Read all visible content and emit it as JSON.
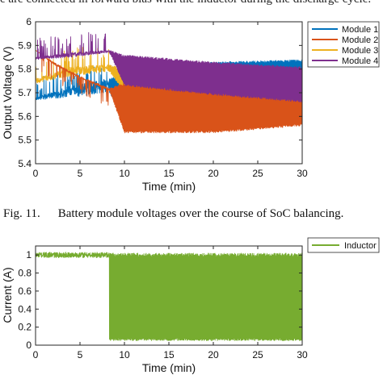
{
  "page": {
    "cut_text": "e are connected in forward bias with the inductor during the discharge cycle.",
    "caption_number": "Fig. 11.",
    "caption_text": "Battery module voltages over the course of SoC balancing."
  },
  "chart_data": [
    {
      "type": "line",
      "title": "",
      "xlabel": "Time (min)",
      "ylabel": "Output Voltage (V)",
      "xlim": [
        0,
        30
      ],
      "ylim": [
        5.4,
        6
      ],
      "xticks": [
        "0",
        "5",
        "10",
        "15",
        "20",
        "25",
        "30"
      ],
      "yticks": [
        "5.4",
        "5.5",
        "5.6",
        "5.7",
        "5.8",
        "5.9",
        "6"
      ],
      "grid": false,
      "legend": "top-right",
      "series": [
        {
          "name": "Module 1",
          "color": "#0072BD",
          "envelope": [
            [
              0,
              5.67,
              5.68
            ],
            [
              4,
              5.68,
              5.73
            ],
            [
              8.3,
              5.7,
              5.76
            ],
            [
              10,
              5.6,
              5.78
            ],
            [
              20,
              5.6,
              5.83
            ],
            [
              30,
              5.58,
              5.84
            ]
          ]
        },
        {
          "name": "Module 2",
          "color": "#D95319",
          "envelope": [
            [
              0,
              5.88,
              5.88
            ],
            [
              2,
              5.82,
              5.83
            ],
            [
              5,
              5.76,
              5.77
            ],
            [
              8.3,
              5.71,
              5.72
            ],
            [
              10,
              5.53,
              5.74
            ],
            [
              20,
              5.53,
              5.73
            ],
            [
              30,
              5.56,
              5.73
            ]
          ]
        },
        {
          "name": "Module 3",
          "color": "#EDB120",
          "envelope": [
            [
              0,
              5.74,
              5.76
            ],
            [
              4,
              5.77,
              5.81
            ],
            [
              8.3,
              5.79,
              5.82
            ],
            [
              10,
              5.7,
              5.8
            ],
            [
              20,
              5.68,
              5.78
            ],
            [
              30,
              5.66,
              5.76
            ]
          ]
        },
        {
          "name": "Module 4",
          "color": "#7E2F8E",
          "envelope": [
            [
              0,
              5.84,
              5.85
            ],
            [
              4,
              5.85,
              5.87
            ],
            [
              8.3,
              5.87,
              5.88
            ],
            [
              10,
              5.73,
              5.86
            ],
            [
              20,
              5.69,
              5.83
            ],
            [
              30,
              5.66,
              5.81
            ]
          ]
        }
      ]
    },
    {
      "type": "line",
      "title": "",
      "xlabel": "Time (min)",
      "ylabel": "Current (A)",
      "xlim": [
        0,
        30
      ],
      "ylim": [
        0,
        1.1
      ],
      "xticks": [
        "0",
        "5",
        "10",
        "15",
        "20",
        "25",
        "30"
      ],
      "yticks": [
        "0",
        "0.2",
        "0.4",
        "0.6",
        "0.8",
        "1"
      ],
      "grid": false,
      "legend": "top-right",
      "series": [
        {
          "name": "Inductor",
          "color": "#77AC30",
          "segments": [
            {
              "x_start": 0,
              "x_end": 8.3,
              "low": 0.97,
              "high": 1.03
            },
            {
              "x_start": 8.3,
              "x_end": 30,
              "low": 0.05,
              "high": 1.02
            }
          ]
        }
      ]
    }
  ]
}
